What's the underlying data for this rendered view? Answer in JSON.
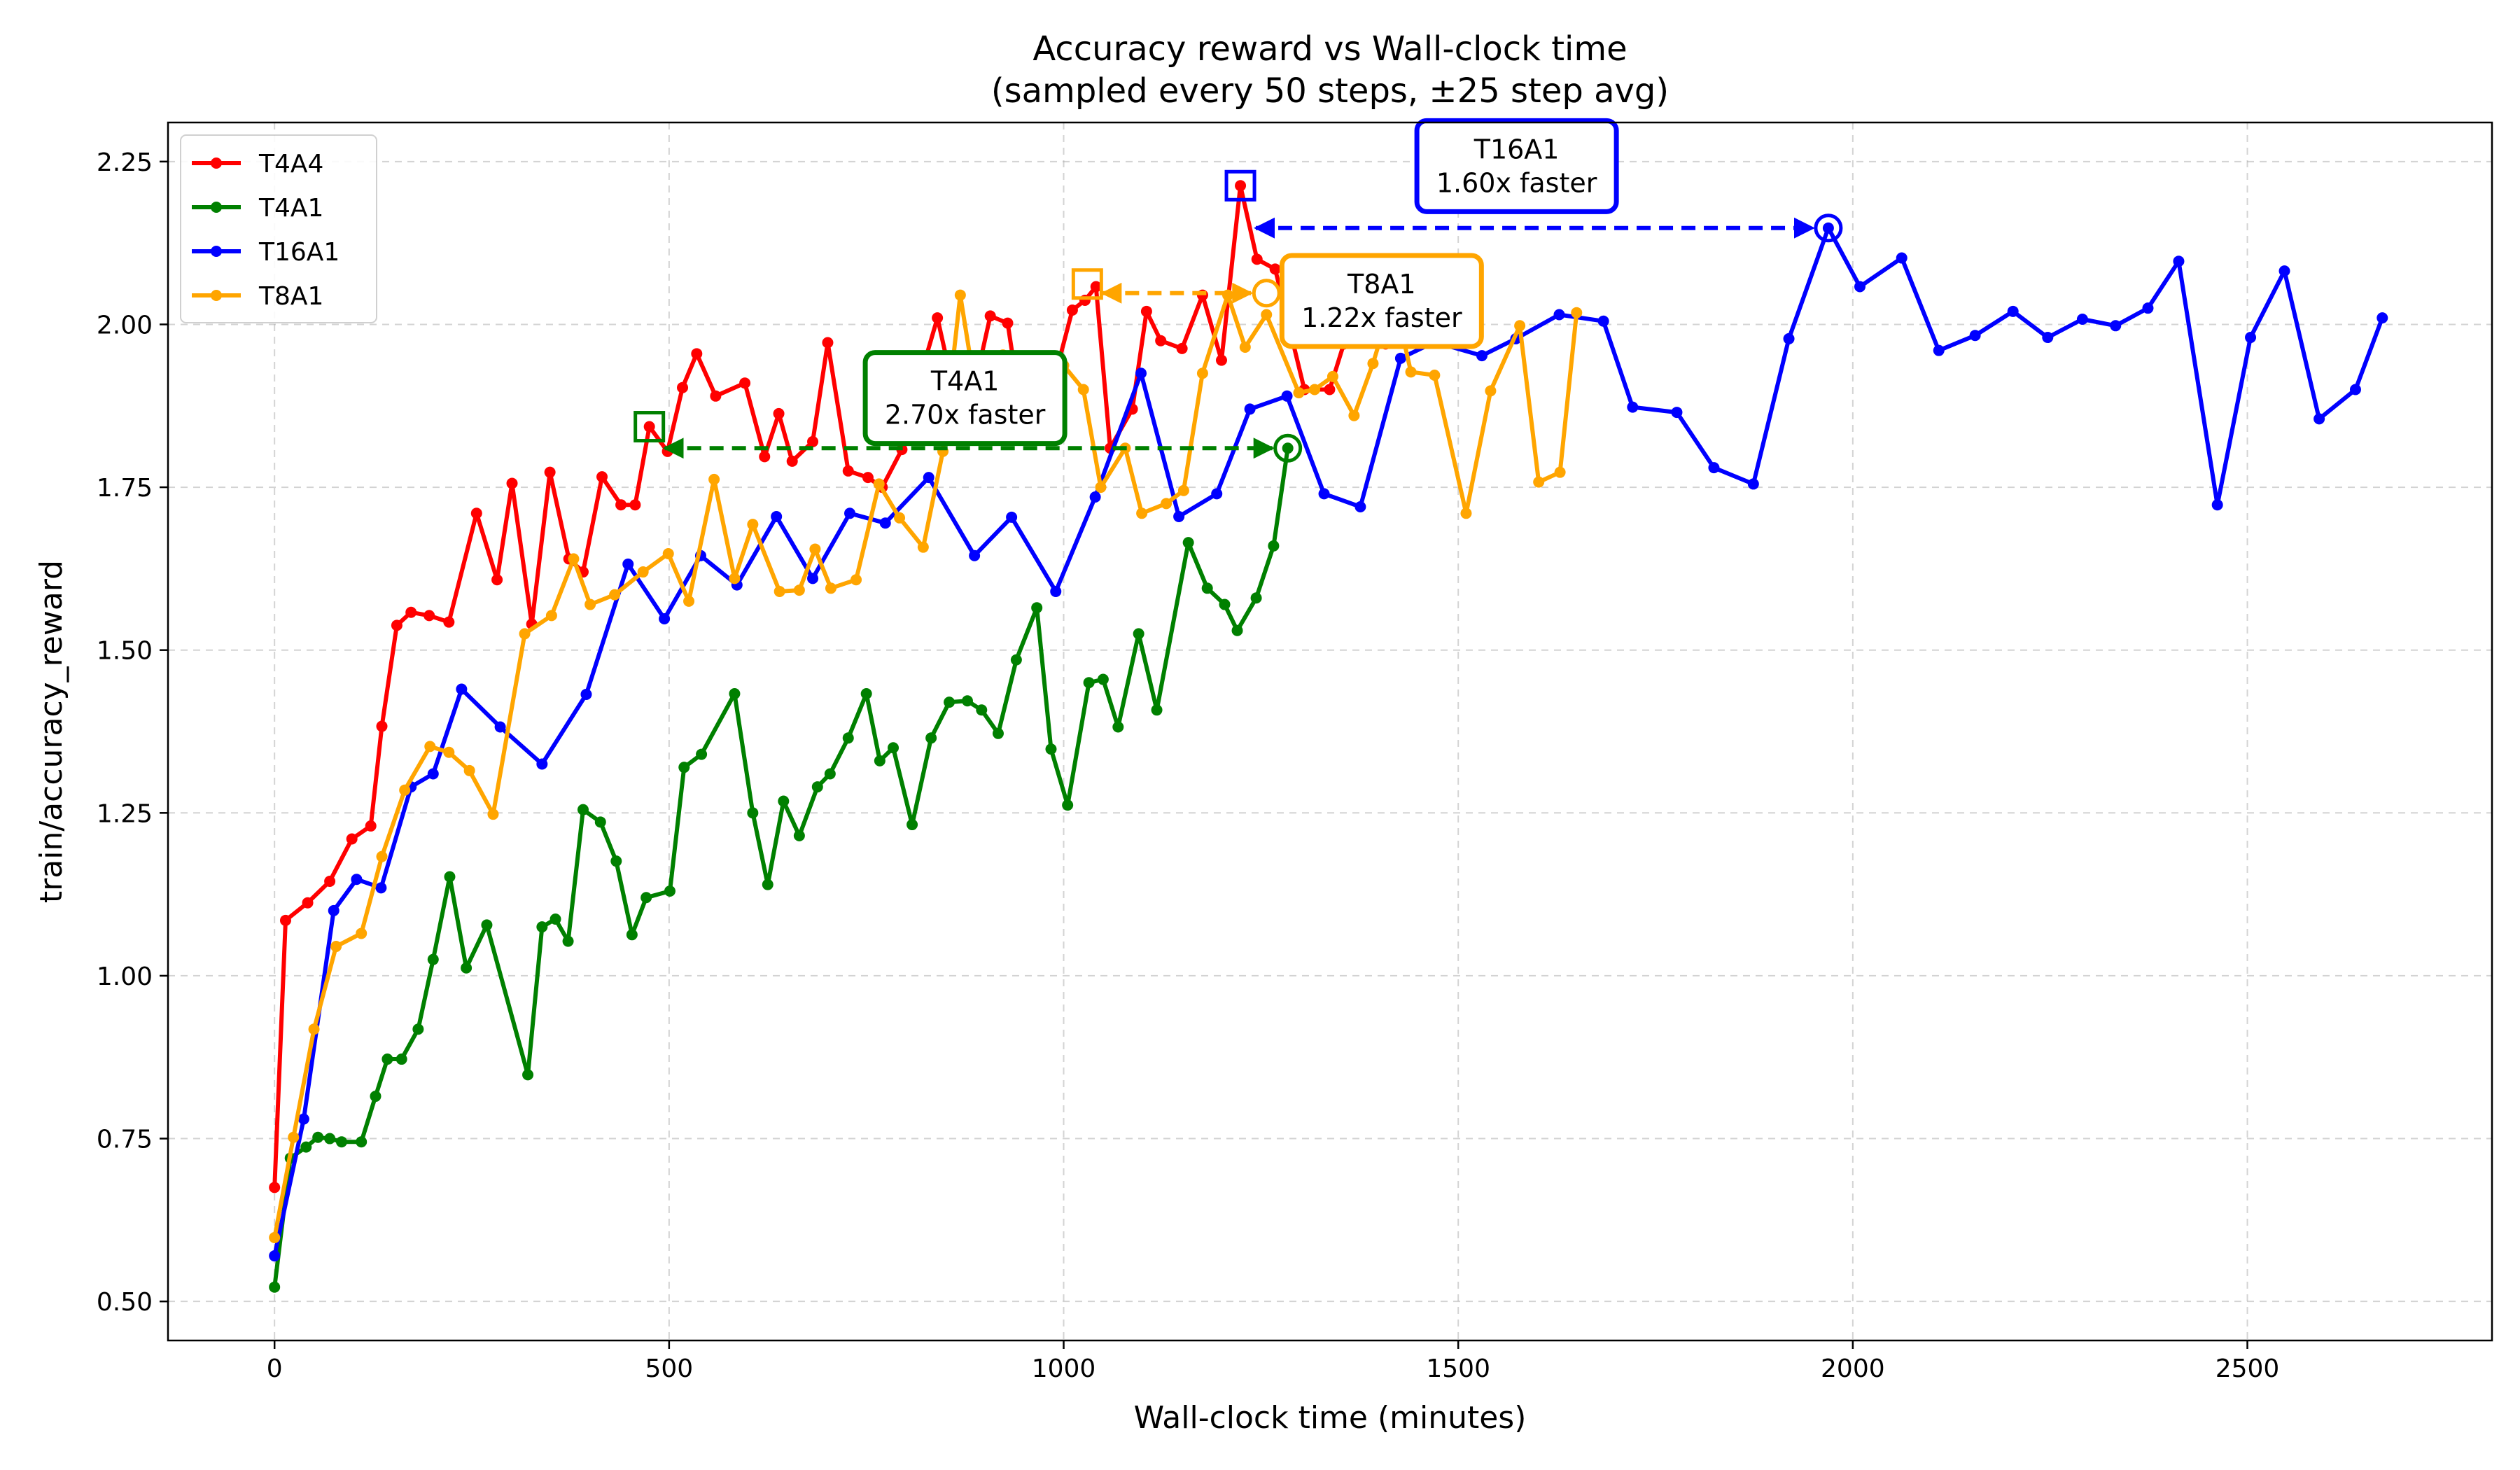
{
  "chart_data": {
    "type": "line",
    "title_line1": "Accuracy reward vs Wall-clock time",
    "title_line2": "(sampled every 50 steps, ±25 step avg)",
    "xlabel": "Wall-clock time (minutes)",
    "ylabel": "train/accuracy_reward",
    "xlim": [
      -135,
      2810
    ],
    "ylim": [
      0.44,
      2.31
    ],
    "xticks": [
      0,
      500,
      1000,
      1500,
      2000,
      2500
    ],
    "xtick_labels": [
      "0",
      "500",
      "1000",
      "1500",
      "2000",
      "2500"
    ],
    "yticks": [
      0.5,
      0.75,
      1.0,
      1.25,
      1.5,
      1.75,
      2.0,
      2.25
    ],
    "ytick_labels": [
      "0.50",
      "0.75",
      "1.00",
      "1.25",
      "1.50",
      "1.75",
      "2.00",
      "2.25"
    ],
    "grid": true,
    "legend_position": "top-left",
    "series": [
      {
        "name": "T4A4",
        "color": "#ff0000",
        "points": [
          [
            0,
            0.675
          ],
          [
            14,
            1.085
          ],
          [
            42,
            1.112
          ],
          [
            70,
            1.145
          ],
          [
            98,
            1.21
          ],
          [
            122,
            1.23
          ],
          [
            136,
            1.383
          ],
          [
            155,
            1.538
          ],
          [
            173,
            1.558
          ],
          [
            196,
            1.553
          ],
          [
            221,
            1.543
          ],
          [
            256,
            1.71
          ],
          [
            282,
            1.608
          ],
          [
            301,
            1.756
          ],
          [
            326,
            1.54
          ],
          [
            349,
            1.773
          ],
          [
            373,
            1.64
          ],
          [
            391,
            1.62
          ],
          [
            415,
            1.766
          ],
          [
            439,
            1.723
          ],
          [
            457,
            1.723
          ],
          [
            475,
            1.843
          ],
          [
            498,
            1.805
          ],
          [
            517,
            1.903
          ],
          [
            535,
            1.955
          ],
          [
            559,
            1.89
          ],
          [
            596,
            1.91
          ],
          [
            621,
            1.797
          ],
          [
            639,
            1.863
          ],
          [
            656,
            1.79
          ],
          [
            682,
            1.82
          ],
          [
            701,
            1.972
          ],
          [
            727,
            1.775
          ],
          [
            752,
            1.765
          ],
          [
            770,
            1.75
          ],
          [
            795,
            1.808
          ],
          [
            816,
            1.91
          ],
          [
            840,
            2.01
          ],
          [
            865,
            1.875
          ],
          [
            885,
            1.893
          ],
          [
            907,
            2.013
          ],
          [
            929,
            2.002
          ],
          [
            945,
            1.875
          ],
          [
            972,
            1.905
          ],
          [
            990,
            1.925
          ],
          [
            1011,
            2.022
          ],
          [
            1027,
            2.037
          ],
          [
            1041,
            2.058
          ],
          [
            1059,
            1.81
          ],
          [
            1087,
            1.87
          ],
          [
            1105,
            2.02
          ],
          [
            1123,
            1.975
          ],
          [
            1150,
            1.963
          ],
          [
            1176,
            2.045
          ],
          [
            1200,
            1.945
          ],
          [
            1224,
            2.213
          ],
          [
            1245,
            2.1
          ],
          [
            1268,
            2.085
          ],
          [
            1305,
            1.9
          ],
          [
            1337,
            1.9
          ],
          [
            1355,
            1.97
          ],
          [
            1383,
            1.985
          ],
          [
            1408,
            1.97
          ]
        ]
      },
      {
        "name": "T4A1",
        "color": "#008000",
        "points": [
          [
            0,
            0.522
          ],
          [
            20,
            0.72
          ],
          [
            40,
            0.737
          ],
          [
            55,
            0.752
          ],
          [
            70,
            0.75
          ],
          [
            85,
            0.745
          ],
          [
            110,
            0.745
          ],
          [
            128,
            0.815
          ],
          [
            143,
            0.872
          ],
          [
            161,
            0.872
          ],
          [
            182,
            0.918
          ],
          [
            201,
            1.025
          ],
          [
            222,
            1.152
          ],
          [
            243,
            1.012
          ],
          [
            269,
            1.078
          ],
          [
            321,
            0.848
          ],
          [
            339,
            1.075
          ],
          [
            356,
            1.087
          ],
          [
            372,
            1.053
          ],
          [
            391,
            1.255
          ],
          [
            413,
            1.236
          ],
          [
            433,
            1.176
          ],
          [
            453,
            1.063
          ],
          [
            471,
            1.12
          ],
          [
            501,
            1.13
          ],
          [
            519,
            1.32
          ],
          [
            541,
            1.34
          ],
          [
            583,
            1.433
          ],
          [
            606,
            1.25
          ],
          [
            625,
            1.14
          ],
          [
            645,
            1.268
          ],
          [
            665,
            1.215
          ],
          [
            688,
            1.29
          ],
          [
            704,
            1.31
          ],
          [
            727,
            1.365
          ],
          [
            750,
            1.433
          ],
          [
            767,
            1.33
          ],
          [
            784,
            1.35
          ],
          [
            808,
            1.232
          ],
          [
            832,
            1.365
          ],
          [
            855,
            1.42
          ],
          [
            878,
            1.422
          ],
          [
            896,
            1.408
          ],
          [
            917,
            1.372
          ],
          [
            940,
            1.485
          ],
          [
            966,
            1.565
          ],
          [
            984,
            1.348
          ],
          [
            1005,
            1.262
          ],
          [
            1032,
            1.45
          ],
          [
            1050,
            1.455
          ],
          [
            1069,
            1.382
          ],
          [
            1095,
            1.525
          ],
          [
            1118,
            1.408
          ],
          [
            1158,
            1.665
          ],
          [
            1182,
            1.595
          ],
          [
            1204,
            1.57
          ],
          [
            1220,
            1.53
          ],
          [
            1244,
            1.58
          ],
          [
            1266,
            1.66
          ],
          [
            1284,
            1.81
          ]
        ]
      },
      {
        "name": "T16A1",
        "color": "#0000ff",
        "points": [
          [
            0,
            0.57
          ],
          [
            37,
            0.78
          ],
          [
            75,
            1.1
          ],
          [
            104,
            1.148
          ],
          [
            135,
            1.135
          ],
          [
            173,
            1.29
          ],
          [
            201,
            1.31
          ],
          [
            237,
            1.44
          ],
          [
            286,
            1.382
          ],
          [
            339,
            1.325
          ],
          [
            395,
            1.432
          ],
          [
            448,
            1.632
          ],
          [
            494,
            1.548
          ],
          [
            540,
            1.645
          ],
          [
            586,
            1.6
          ],
          [
            636,
            1.705
          ],
          [
            682,
            1.61
          ],
          [
            729,
            1.71
          ],
          [
            774,
            1.695
          ],
          [
            829,
            1.765
          ],
          [
            887,
            1.645
          ],
          [
            934,
            1.704
          ],
          [
            990,
            1.59
          ],
          [
            1040,
            1.735
          ],
          [
            1098,
            1.925
          ],
          [
            1146,
            1.705
          ],
          [
            1194,
            1.74
          ],
          [
            1236,
            1.87
          ],
          [
            1283,
            1.89
          ],
          [
            1330,
            1.74
          ],
          [
            1376,
            1.72
          ],
          [
            1427,
            1.948
          ],
          [
            1470,
            1.973
          ],
          [
            1530,
            1.952
          ],
          [
            1573,
            1.978
          ],
          [
            1628,
            2.015
          ],
          [
            1684,
            2.005
          ],
          [
            1721,
            1.873
          ],
          [
            1777,
            1.865
          ],
          [
            1824,
            1.78
          ],
          [
            1874,
            1.755
          ],
          [
            1919,
            1.978
          ],
          [
            1969,
            2.148
          ],
          [
            2009,
            2.058
          ],
          [
            2062,
            2.102
          ],
          [
            2109,
            1.96
          ],
          [
            2155,
            1.983
          ],
          [
            2203,
            2.02
          ],
          [
            2247,
            1.98
          ],
          [
            2291,
            2.008
          ],
          [
            2333,
            1.998
          ],
          [
            2374,
            2.025
          ],
          [
            2413,
            2.097
          ],
          [
            2462,
            1.723
          ],
          [
            2504,
            1.98
          ],
          [
            2547,
            2.082
          ],
          [
            2591,
            1.855
          ],
          [
            2637,
            1.9
          ],
          [
            2671,
            2.01
          ]
        ]
      },
      {
        "name": "T8A1",
        "color": "#ffa500",
        "points": [
          [
            0,
            0.598
          ],
          [
            24,
            0.752
          ],
          [
            50,
            0.918
          ],
          [
            78,
            1.045
          ],
          [
            110,
            1.065
          ],
          [
            136,
            1.183
          ],
          [
            165,
            1.285
          ],
          [
            197,
            1.352
          ],
          [
            221,
            1.343
          ],
          [
            247,
            1.315
          ],
          [
            277,
            1.248
          ],
          [
            317,
            1.525
          ],
          [
            351,
            1.553
          ],
          [
            379,
            1.64
          ],
          [
            400,
            1.57
          ],
          [
            431,
            1.585
          ],
          [
            467,
            1.62
          ],
          [
            499,
            1.648
          ],
          [
            525,
            1.575
          ],
          [
            557,
            1.762
          ],
          [
            583,
            1.61
          ],
          [
            606,
            1.693
          ],
          [
            640,
            1.59
          ],
          [
            665,
            1.592
          ],
          [
            685,
            1.655
          ],
          [
            705,
            1.595
          ],
          [
            737,
            1.608
          ],
          [
            766,
            1.755
          ],
          [
            792,
            1.703
          ],
          [
            822,
            1.658
          ],
          [
            847,
            1.805
          ],
          [
            869,
            2.045
          ],
          [
            898,
            1.825
          ],
          [
            923,
            1.953
          ],
          [
            946,
            1.848
          ],
          [
            970,
            1.87
          ],
          [
            1000,
            1.937
          ],
          [
            1025,
            1.9
          ],
          [
            1047,
            1.75
          ],
          [
            1078,
            1.81
          ],
          [
            1099,
            1.71
          ],
          [
            1130,
            1.725
          ],
          [
            1152,
            1.745
          ],
          [
            1176,
            1.925
          ],
          [
            1208,
            2.045
          ],
          [
            1230,
            1.965
          ],
          [
            1257,
            2.015
          ],
          [
            1298,
            1.895
          ],
          [
            1318,
            1.9
          ],
          [
            1341,
            1.92
          ],
          [
            1368,
            1.86
          ],
          [
            1392,
            1.94
          ],
          [
            1418,
            2.045
          ],
          [
            1440,
            1.927
          ],
          [
            1470,
            1.922
          ],
          [
            1510,
            1.71
          ],
          [
            1541,
            1.898
          ],
          [
            1578,
            1.998
          ],
          [
            1602,
            1.758
          ],
          [
            1629,
            1.773
          ],
          [
            1650,
            2.018
          ]
        ]
      }
    ],
    "annotations": [
      {
        "name": "T4A1",
        "line1": "T4A1",
        "line2": "2.70x faster",
        "color": "#008000",
        "from": [
          475,
          1.843
        ],
        "to": [
          1284,
          1.81
        ],
        "arrow_y": 1.81,
        "box_center": [
          875,
          1.887
        ]
      },
      {
        "name": "T8A1",
        "line1": "T8A1",
        "line2": "1.22x faster",
        "color": "#ffa500",
        "from": [
          1030,
          2.062
        ],
        "to": [
          1257,
          2.048
        ],
        "arrow_y": 2.048,
        "box_center": [
          1403,
          2.036
        ]
      },
      {
        "name": "T16A1",
        "line1": "T16A1",
        "line2": "1.60x faster",
        "color": "#0000ff",
        "from": [
          1224,
          2.213
        ],
        "to": [
          1969,
          2.148
        ],
        "arrow_y": 2.148,
        "box_center": [
          1574,
          2.243
        ]
      }
    ]
  }
}
